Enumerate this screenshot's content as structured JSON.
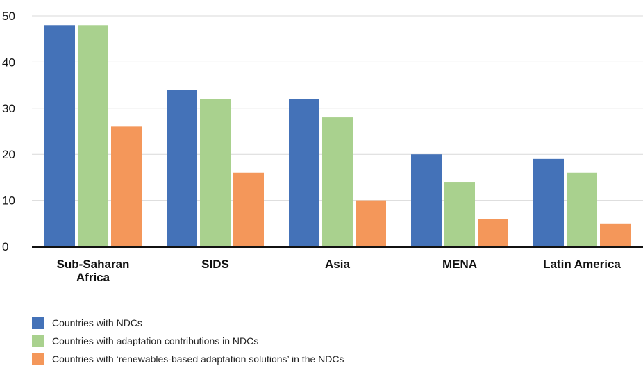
{
  "chart_data": {
    "type": "bar",
    "categories": [
      [
        "Sub-Saharan",
        "Africa"
      ],
      [
        "SIDS"
      ],
      [
        "Asia"
      ],
      [
        "MENA"
      ],
      [
        "Latin America"
      ]
    ],
    "series": [
      {
        "name": "Countries with NDCs",
        "color": "#4472b8",
        "values": [
          48,
          34,
          32,
          20,
          19
        ]
      },
      {
        "name": "Countries with adaptation contributions in NDCs",
        "color": "#a9d18e",
        "values": [
          48,
          32,
          28,
          14,
          16
        ]
      },
      {
        "name": "Countries with ‘renewables-based adaptation solutions’ in the NDCs",
        "color": "#f4975a",
        "values": [
          26,
          16,
          10,
          6,
          5
        ]
      }
    ],
    "ylim": [
      0,
      50
    ],
    "yticks": [
      0,
      10,
      20,
      30,
      40,
      50
    ],
    "grid": true,
    "legend_position": "bottom-left",
    "title": "",
    "xlabel": "",
    "ylabel": ""
  }
}
